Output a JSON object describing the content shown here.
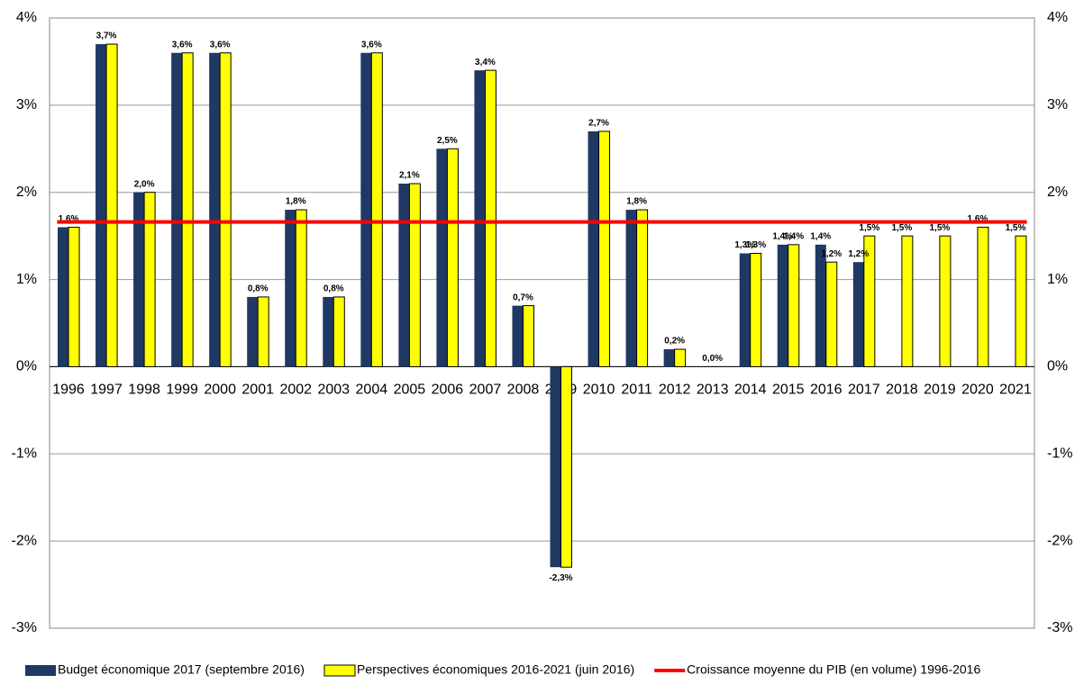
{
  "chart_data": {
    "type": "bar",
    "categories": [
      "1996",
      "1997",
      "1998",
      "1999",
      "2000",
      "2001",
      "2002",
      "2003",
      "2004",
      "2005",
      "2006",
      "2007",
      "2008",
      "2009",
      "2010",
      "2011",
      "2012",
      "2013",
      "2014",
      "2015",
      "2016",
      "2017",
      "2018",
      "2019",
      "2020",
      "2021"
    ],
    "series": [
      {
        "name": "Budget économique 2017 (septembre 2016)",
        "color": "#1f3864",
        "values": [
          1.6,
          3.7,
          2.0,
          3.6,
          3.6,
          0.8,
          1.8,
          0.8,
          3.6,
          2.1,
          2.5,
          3.4,
          0.7,
          -2.3,
          2.7,
          1.8,
          0.2,
          0.0,
          1.3,
          1.4,
          1.4,
          1.2,
          null,
          null,
          null,
          null
        ],
        "value_labels": [
          "1,6%",
          "3,7%",
          "2,0%",
          "3,6%",
          "3,6%",
          "0,8%",
          "1,8%",
          "0,8%",
          "3,6%",
          "2,1%",
          "2,5%",
          "3,4%",
          "0,7%",
          "-2,3%",
          "2,7%",
          "1,8%",
          "0,2%",
          "0,0%",
          "1,3%",
          "1,4%",
          "1,4%",
          "1,2%",
          null,
          null,
          null,
          null
        ]
      },
      {
        "name": "Perspectives économiques 2016-2021 (juin 2016)",
        "color": "#ffff00",
        "values": [
          1.6,
          3.7,
          2.0,
          3.6,
          3.6,
          0.8,
          1.8,
          0.8,
          3.6,
          2.1,
          2.5,
          3.4,
          0.7,
          -2.3,
          2.7,
          1.8,
          0.2,
          null,
          1.3,
          1.4,
          1.2,
          1.5,
          1.5,
          1.5,
          1.6,
          1.5
        ],
        "value_labels": [
          null,
          null,
          null,
          null,
          null,
          null,
          null,
          null,
          null,
          null,
          null,
          null,
          null,
          null,
          null,
          null,
          null,
          null,
          "1,3%",
          "1,4%",
          "1,2%",
          "1,5%",
          "1,5%",
          "1,5%",
          "1,6%",
          "1,5%"
        ]
      }
    ],
    "reference_lines": [
      {
        "name": "Croissance moyenne du PIB (en volume) 1996-2016",
        "color": "#ff0000",
        "value": 1.66
      }
    ],
    "ylim": [
      -3,
      4
    ],
    "yticks": [
      {
        "value": -3,
        "label": "-3%"
      },
      {
        "value": -2,
        "label": "-2%"
      },
      {
        "value": -1,
        "label": "-1%"
      },
      {
        "value": 0,
        "label": "0%"
      },
      {
        "value": 1,
        "label": "1%"
      },
      {
        "value": 2,
        "label": "2%"
      },
      {
        "value": 3,
        "label": "3%"
      },
      {
        "value": 4,
        "label": "4%"
      }
    ],
    "grid": true,
    "legend": "bottom"
  }
}
